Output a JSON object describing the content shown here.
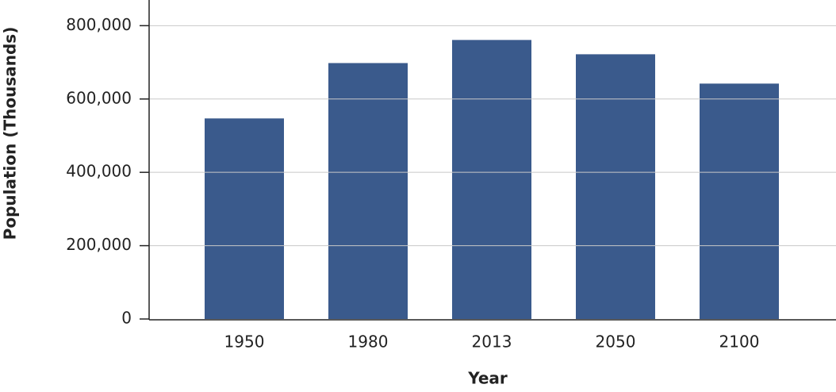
{
  "chart_data": {
    "type": "bar",
    "x_label": "Year",
    "y_label": "Population (Thousands)",
    "categories": [
      "1950",
      "1980",
      "2013",
      "2050",
      "2100"
    ],
    "values": [
      547000,
      698000,
      761000,
      722000,
      642000
    ],
    "color": "#3a5a8c",
    "ylim": [
      0,
      870000
    ],
    "yticks": [
      0,
      {
        "value": 200000,
        "label": "200,000"
      },
      {
        "value": 400000,
        "label": "400,000"
      },
      {
        "value": 600000,
        "label": "600,000"
      },
      {
        "value": 800000,
        "label": "800,000"
      }
    ],
    "grid": true
  }
}
